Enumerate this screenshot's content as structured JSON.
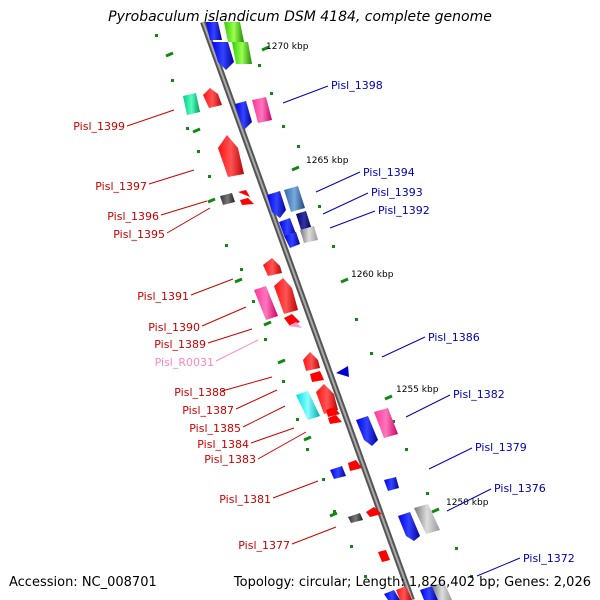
{
  "title": "Pyrobaculum islandicum DSM 4184, complete genome",
  "accession_label": "Accession: NC_008701",
  "topology_label": "Topology: circular; Length: 1,826,402 bp; Genes: 2,026",
  "colors": {
    "left_label": "#cc0000",
    "right_label": "#0000bb",
    "rna_label": "#ff88bb",
    "backbone": "#888888",
    "tick": "#118811"
  },
  "ticks": [
    {
      "label": "1270 kbp"
    },
    {
      "label": "1265 kbp"
    },
    {
      "label": "1260 kbp"
    },
    {
      "label": "1255 kbp"
    },
    {
      "label": "1250 kbp"
    }
  ],
  "left_genes": [
    {
      "label": "Pisl_1399"
    },
    {
      "label": "Pisl_1397"
    },
    {
      "label": "Pisl_1396"
    },
    {
      "label": "Pisl_1395"
    },
    {
      "label": "Pisl_1391"
    },
    {
      "label": "Pisl_1390"
    },
    {
      "label": "Pisl_1389"
    },
    {
      "label": "Pisl_R0031"
    },
    {
      "label": "Pisl_1388"
    },
    {
      "label": "Pisl_1387"
    },
    {
      "label": "Pisl_1385"
    },
    {
      "label": "Pisl_1384"
    },
    {
      "label": "Pisl_1383"
    },
    {
      "label": "Pisl_1381"
    },
    {
      "label": "Pisl_1377"
    }
  ],
  "right_genes": [
    {
      "label": "Pisl_1398"
    },
    {
      "label": "Pisl_1394"
    },
    {
      "label": "Pisl_1393"
    },
    {
      "label": "Pisl_1392"
    },
    {
      "label": "Pisl_1386"
    },
    {
      "label": "Pisl_1382"
    },
    {
      "label": "Pisl_1379"
    },
    {
      "label": "Pisl_1376"
    },
    {
      "label": "Pisl_1372"
    }
  ]
}
